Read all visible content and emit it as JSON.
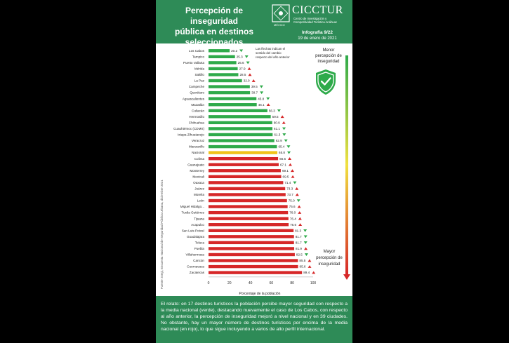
{
  "header": {
    "title_lines": [
      "Percepción de inseguridad",
      "pública en destinos",
      "seleccionados"
    ],
    "logo_small_text": "MÉXICO",
    "brand": "CICCTUR",
    "brand_subtitle_lines": [
      "Centro de Investigación y",
      "Competitividad Turística Anáhuac"
    ],
    "infografia": "Infografía 9/22",
    "date": "19 de enero de 2021"
  },
  "chart_data": {
    "type": "bar",
    "orientation": "horizontal",
    "categories": [
      "Los Cabos",
      "Tampico",
      "Puerto Vallarta",
      "Mérida",
      "Saltillo",
      "La Paz",
      "Campeche",
      "Querétaro",
      "Aguascalientes",
      "Mazatlán",
      "Culiacán",
      "Hermosillo",
      "Chihuahua",
      "Cuauhtémoc (CDMX)",
      "Ixtapa-Zihuatanejo",
      "Veracruz",
      "Manzanillo",
      "Nacional",
      "Colima",
      "Guanajuato",
      "Monterrey",
      "Mexicali",
      "Oaxaca",
      "Juárez",
      "Morelia",
      "León",
      "Miguel Hidalgo...",
      "Tuxtla Gutiérrez",
      "Tijuana",
      "Acapulco",
      "San Luis Potosí",
      "Guadalajara",
      "Toluca",
      "Puebla",
      "Villahermosa",
      "Cancún",
      "Cuernavaca",
      "Zacatecas"
    ],
    "values": [
      20.2,
      25.3,
      26.6,
      27.9,
      28.5,
      32.0,
      39.5,
      39.7,
      45.8,
      46.1,
      56.3,
      59.5,
      60.9,
      61.1,
      61.3,
      62.9,
      65.4,
      65.8,
      66.5,
      67.1,
      69.1,
      69.5,
      71.4,
      73.3,
      73.7,
      75.0,
      75.6,
      76.0,
      76.4,
      76.6,
      81.3,
      81.7,
      81.7,
      81.9,
      82.5,
      85.5,
      85.6,
      89.4
    ],
    "value_labels": [
      "20.2",
      "25.3",
      "26.6",
      "27.9",
      "28.5",
      "32.0",
      "39.5",
      "39.7",
      "45.8",
      "46.1",
      "56.3",
      "59.5",
      "60.9",
      "61.1",
      "61.3",
      "62.9",
      "65.4",
      "65.8",
      "66.5",
      "67.1",
      "69.1",
      "69.5",
      "71.4",
      "73.3",
      "73.7",
      "75.0",
      "75.6",
      "76.0",
      "76.4",
      "76.6",
      "81.3",
      "81.7",
      "81.7",
      "81.9",
      "82.5",
      "85.5",
      "85.6",
      "89.4"
    ],
    "groups": [
      "below",
      "below",
      "below",
      "below",
      "below",
      "below",
      "below",
      "below",
      "below",
      "below",
      "below",
      "below",
      "below",
      "below",
      "below",
      "below",
      "below",
      "national",
      "above",
      "above",
      "above",
      "above",
      "above",
      "above",
      "above",
      "above",
      "above",
      "above",
      "above",
      "above",
      "above",
      "above",
      "above",
      "above",
      "above",
      "above",
      "above",
      "above"
    ],
    "change_arrows": [
      "down",
      "down",
      "down",
      "up",
      "up",
      "up",
      "down",
      "down",
      "down",
      "up",
      "down",
      "up",
      "up",
      "down",
      "down",
      "down",
      "down",
      "down",
      "up",
      "up",
      "up",
      "up",
      "down",
      "up",
      "up",
      "down",
      "up",
      "up",
      "up",
      "up",
      "down",
      "down",
      "down",
      "up",
      "down",
      "up",
      "up",
      "up"
    ],
    "xlim": [
      0,
      100
    ],
    "xticks": [
      0,
      20,
      40,
      60,
      80,
      100
    ],
    "xlabel": "Porcentaje de la población",
    "colors": {
      "below": "#2eaa4a",
      "national": "#f0c419",
      "above": "#d62728",
      "arrow_down": "#2eaa4a",
      "arrow_up": "#d62728"
    },
    "note_lines": [
      "Las flechas indican el",
      "sentido del cambio",
      "respecto del año anterior"
    ],
    "scale_top_lines": [
      "Menor",
      "percepción de",
      "inseguridad"
    ],
    "scale_bottom_lines": [
      "Mayor",
      "percepción de",
      "inseguridad"
    ],
    "source": "Fuente: Inegi, Encuesta Nacional de Seguridad Pública Urbana, diciembre 2021"
  },
  "footer": {
    "text": "El relato: en 17 destinos turísticos la población percibe mayor seguridad con respecto a la media nacional (verde), destacando nuevamente el caso de Los Cabos, con respecto al año anterior, la percepción de inseguridad mejoró a nivel nacional y en 39 ciudades. No obstante, hay un mayor número de destinos turísticos por encima de la media nacional (en rojo), lo que sigue incluyendo a varios de alto perfil internacional."
  },
  "icons": {
    "shield": "shield-check-icon",
    "logo": "university-seal-icon"
  }
}
